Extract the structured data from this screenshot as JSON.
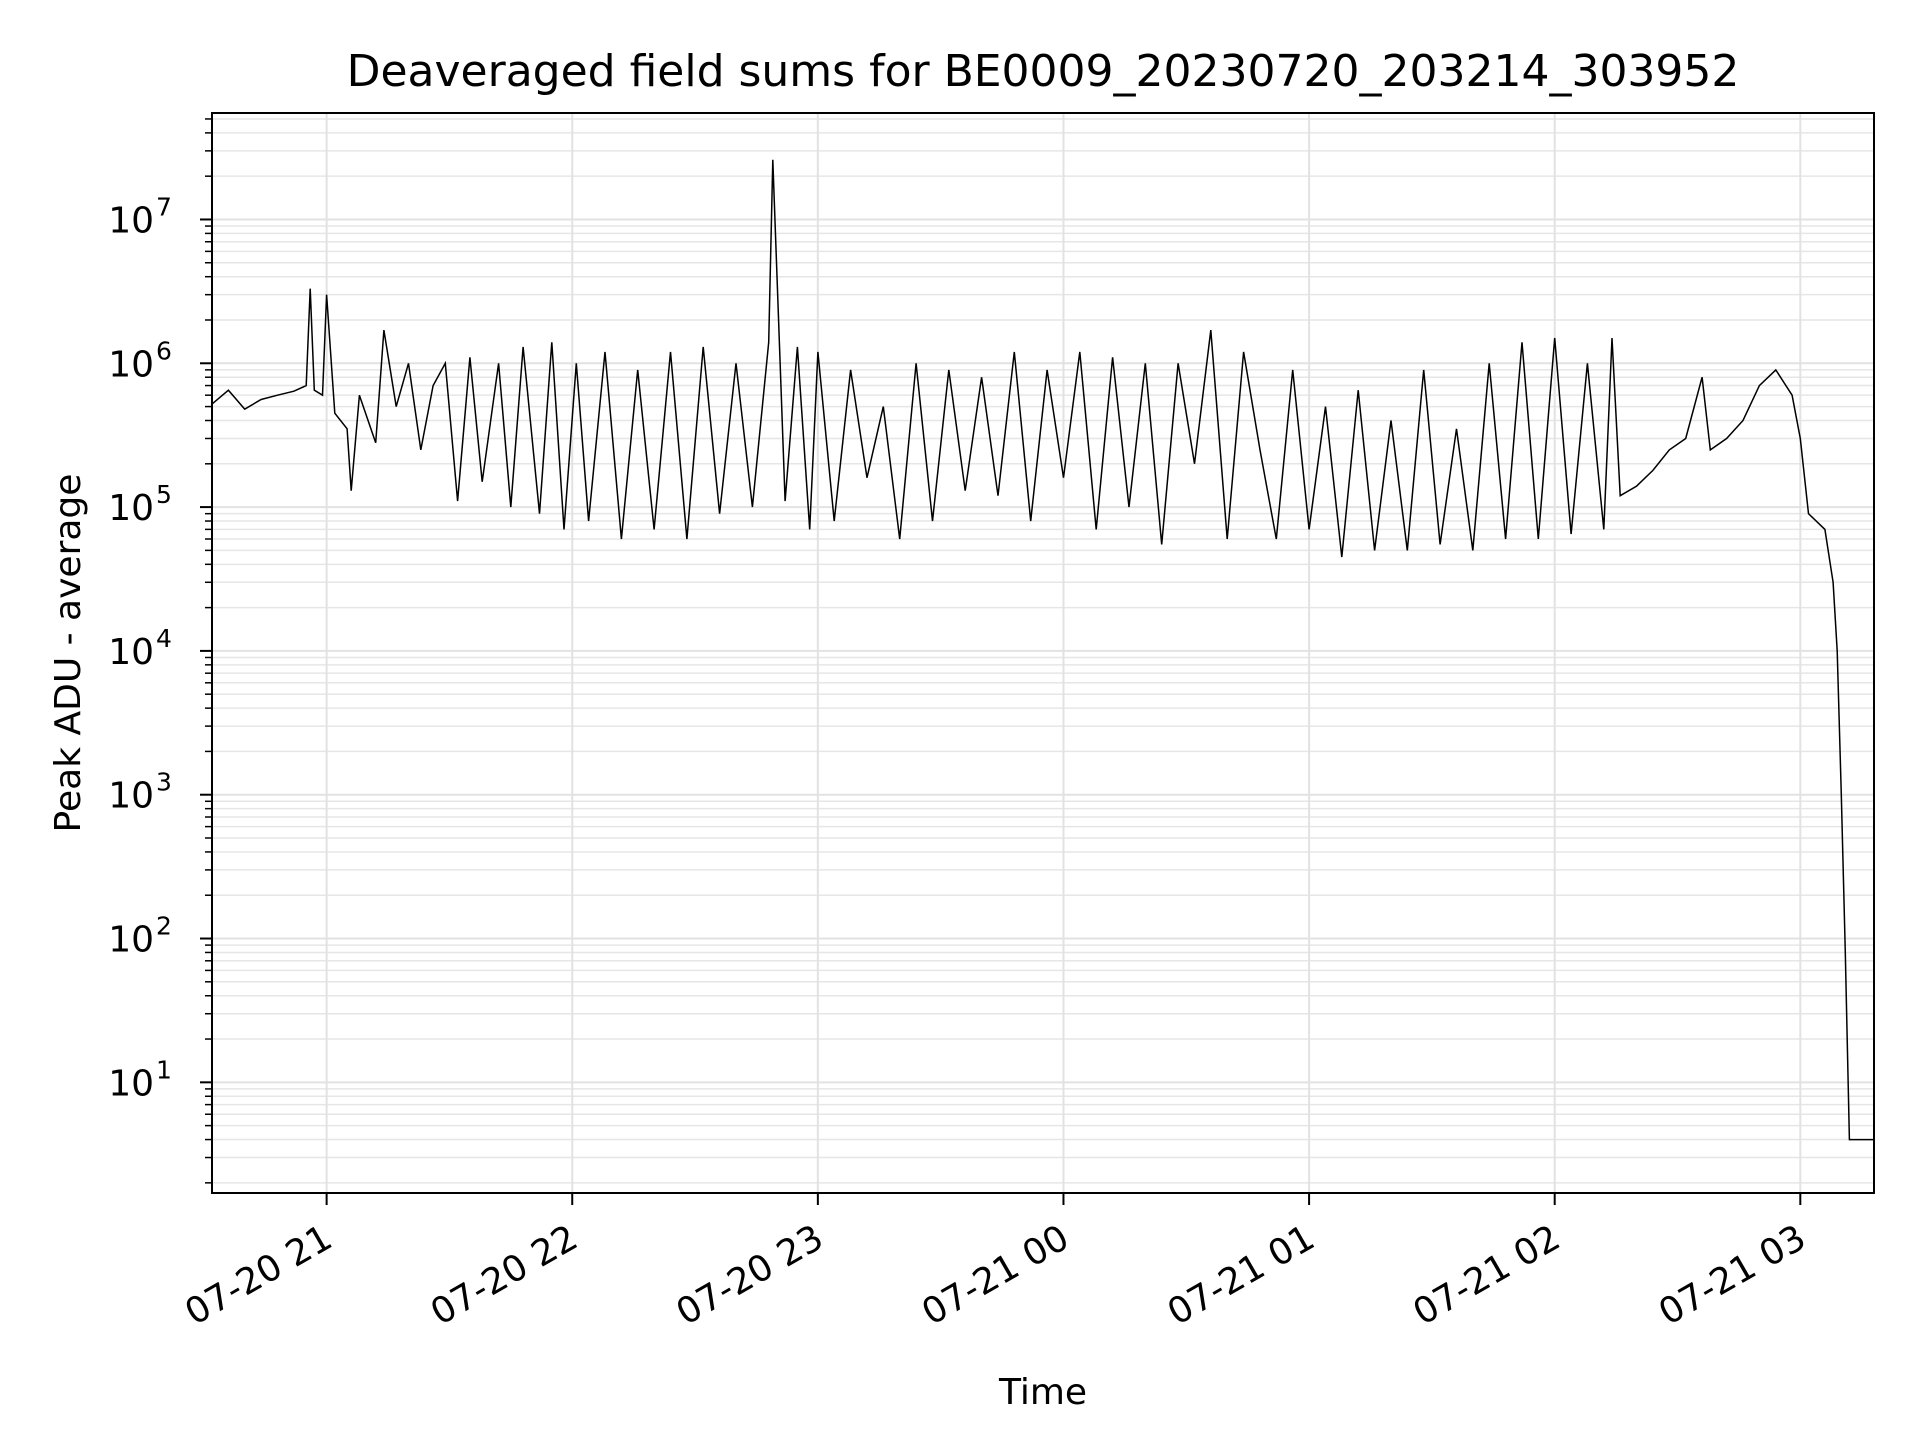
{
  "chart_data": {
    "type": "line",
    "title": "Deaveraged field sums for BE0009_20230720_203214_303952",
    "xlabel": "Time",
    "ylabel": "Peak ADU - average",
    "yscale": "log",
    "ylim": [
      1.7,
      55000000
    ],
    "xlim": [
      "2023-07-20 20:32",
      "2023-07-21 03:18"
    ],
    "grid": true,
    "x_ticks": [
      {
        "t": "2023-07-20 21:00",
        "label": "07-20 21"
      },
      {
        "t": "2023-07-20 22:00",
        "label": "07-20 22"
      },
      {
        "t": "2023-07-20 23:00",
        "label": "07-20 23"
      },
      {
        "t": "2023-07-21 00:00",
        "label": "07-21 00"
      },
      {
        "t": "2023-07-21 01:00",
        "label": "07-21 01"
      },
      {
        "t": "2023-07-21 02:00",
        "label": "07-21 02"
      },
      {
        "t": "2023-07-21 03:00",
        "label": "07-21 03"
      }
    ],
    "y_ticks": [
      {
        "value": 10,
        "base": "10",
        "exp": "1"
      },
      {
        "value": 100,
        "base": "10",
        "exp": "2"
      },
      {
        "value": 1000,
        "base": "10",
        "exp": "3"
      },
      {
        "value": 10000,
        "base": "10",
        "exp": "4"
      },
      {
        "value": 100000,
        "base": "10",
        "exp": "5"
      },
      {
        "value": 1000000,
        "base": "10",
        "exp": "6"
      },
      {
        "value": 10000000,
        "base": "10",
        "exp": "7"
      }
    ],
    "series": [
      {
        "color": "#000000",
        "points": [
          [
            "2023-07-20 20:32",
            520000
          ],
          [
            "2023-07-20 20:36",
            650000
          ],
          [
            "2023-07-20 20:40",
            480000
          ],
          [
            "2023-07-20 20:44",
            560000
          ],
          [
            "2023-07-20 20:48",
            600000
          ],
          [
            "2023-07-20 20:52",
            640000
          ],
          [
            "2023-07-20 20:55",
            700000
          ],
          [
            "2023-07-20 20:56",
            3300000
          ],
          [
            "2023-07-20 20:57",
            650000
          ],
          [
            "2023-07-20 20:59",
            600000
          ],
          [
            "2023-07-20 21:00",
            3000000
          ],
          [
            "2023-07-20 21:02",
            450000
          ],
          [
            "2023-07-20 21:05",
            350000
          ],
          [
            "2023-07-20 21:06",
            130000
          ],
          [
            "2023-07-20 21:08",
            600000
          ],
          [
            "2023-07-20 21:12",
            280000
          ],
          [
            "2023-07-20 21:14",
            1700000
          ],
          [
            "2023-07-20 21:17",
            500000
          ],
          [
            "2023-07-20 21:20",
            1000000
          ],
          [
            "2023-07-20 21:23",
            250000
          ],
          [
            "2023-07-20 21:26",
            700000
          ],
          [
            "2023-07-20 21:29",
            1000000
          ],
          [
            "2023-07-20 21:32",
            110000
          ],
          [
            "2023-07-20 21:35",
            1100000
          ],
          [
            "2023-07-20 21:38",
            150000
          ],
          [
            "2023-07-20 21:42",
            1000000
          ],
          [
            "2023-07-20 21:45",
            100000
          ],
          [
            "2023-07-20 21:48",
            1300000
          ],
          [
            "2023-07-20 21:52",
            90000
          ],
          [
            "2023-07-20 21:55",
            1400000
          ],
          [
            "2023-07-20 21:58",
            70000
          ],
          [
            "2023-07-20 22:01",
            1000000
          ],
          [
            "2023-07-20 22:04",
            80000
          ],
          [
            "2023-07-20 22:08",
            1200000
          ],
          [
            "2023-07-20 22:12",
            60000
          ],
          [
            "2023-07-20 22:16",
            900000
          ],
          [
            "2023-07-20 22:20",
            70000
          ],
          [
            "2023-07-20 22:24",
            1200000
          ],
          [
            "2023-07-20 22:28",
            60000
          ],
          [
            "2023-07-20 22:32",
            1300000
          ],
          [
            "2023-07-20 22:36",
            90000
          ],
          [
            "2023-07-20 22:40",
            1000000
          ],
          [
            "2023-07-20 22:44",
            100000
          ],
          [
            "2023-07-20 22:48",
            1400000
          ],
          [
            "2023-07-20 22:52",
            110000
          ],
          [
            "2023-07-20 22:55",
            1300000
          ],
          [
            "2023-07-20 22:58",
            70000
          ],
          [
            "2023-07-20 23:00",
            1200000
          ],
          [
            "2023-07-20 22:49",
            26000000
          ],
          [
            "2023-07-20 23:04",
            80000
          ],
          [
            "2023-07-20 23:08",
            900000
          ],
          [
            "2023-07-20 23:12",
            160000
          ],
          [
            "2023-07-20 23:16",
            500000
          ],
          [
            "2023-07-20 23:20",
            60000
          ],
          [
            "2023-07-20 23:24",
            1000000
          ],
          [
            "2023-07-20 23:28",
            80000
          ],
          [
            "2023-07-20 23:32",
            900000
          ],
          [
            "2023-07-20 23:36",
            130000
          ],
          [
            "2023-07-20 23:40",
            800000
          ],
          [
            "2023-07-20 23:44",
            120000
          ],
          [
            "2023-07-20 23:48",
            1200000
          ],
          [
            "2023-07-20 23:52",
            80000
          ],
          [
            "2023-07-20 23:56",
            900000
          ],
          [
            "2023-07-21 00:00",
            160000
          ],
          [
            "2023-07-21 00:04",
            1200000
          ],
          [
            "2023-07-21 00:08",
            70000
          ],
          [
            "2023-07-21 00:12",
            1100000
          ],
          [
            "2023-07-21 00:16",
            100000
          ],
          [
            "2023-07-21 00:20",
            1000000
          ],
          [
            "2023-07-21 00:24",
            55000
          ],
          [
            "2023-07-21 00:28",
            1000000
          ],
          [
            "2023-07-21 00:32",
            200000
          ],
          [
            "2023-07-21 00:36",
            1700000
          ],
          [
            "2023-07-21 00:40",
            60000
          ],
          [
            "2023-07-21 00:44",
            1200000
          ],
          [
            "2023-07-21 00:48",
            250000
          ],
          [
            "2023-07-21 00:52",
            60000
          ],
          [
            "2023-07-21 00:56",
            900000
          ],
          [
            "2023-07-21 01:00",
            70000
          ],
          [
            "2023-07-21 01:04",
            500000
          ],
          [
            "2023-07-21 01:08",
            45000
          ],
          [
            "2023-07-21 01:12",
            650000
          ],
          [
            "2023-07-21 01:16",
            50000
          ],
          [
            "2023-07-21 01:20",
            400000
          ],
          [
            "2023-07-21 01:24",
            50000
          ],
          [
            "2023-07-21 01:28",
            900000
          ],
          [
            "2023-07-21 01:32",
            55000
          ],
          [
            "2023-07-21 01:36",
            350000
          ],
          [
            "2023-07-21 01:40",
            50000
          ],
          [
            "2023-07-21 01:44",
            1000000
          ],
          [
            "2023-07-21 01:48",
            60000
          ],
          [
            "2023-07-21 01:52",
            1400000
          ],
          [
            "2023-07-21 01:56",
            60000
          ],
          [
            "2023-07-21 02:00",
            1500000
          ],
          [
            "2023-07-21 02:04",
            65000
          ],
          [
            "2023-07-21 02:08",
            1000000
          ],
          [
            "2023-07-21 02:12",
            70000
          ],
          [
            "2023-07-21 02:14",
            1500000
          ],
          [
            "2023-07-21 02:16",
            120000
          ],
          [
            "2023-07-21 02:20",
            140000
          ],
          [
            "2023-07-21 02:24",
            180000
          ],
          [
            "2023-07-21 02:28",
            250000
          ],
          [
            "2023-07-21 02:32",
            300000
          ],
          [
            "2023-07-21 02:36",
            800000
          ],
          [
            "2023-07-21 02:38",
            250000
          ],
          [
            "2023-07-21 02:42",
            300000
          ],
          [
            "2023-07-21 02:46",
            400000
          ],
          [
            "2023-07-21 02:50",
            700000
          ],
          [
            "2023-07-21 02:54",
            900000
          ],
          [
            "2023-07-21 02:58",
            600000
          ],
          [
            "2023-07-21 03:00",
            300000
          ],
          [
            "2023-07-21 03:02",
            90000
          ],
          [
            "2023-07-21 03:06",
            70000
          ],
          [
            "2023-07-21 03:08",
            30000
          ],
          [
            "2023-07-21 03:09",
            10000
          ],
          [
            "2023-07-21 03:10",
            1000
          ],
          [
            "2023-07-21 03:11",
            80
          ],
          [
            "2023-07-21 03:12",
            4
          ],
          [
            "2023-07-21 03:18",
            4
          ]
        ]
      }
    ]
  }
}
